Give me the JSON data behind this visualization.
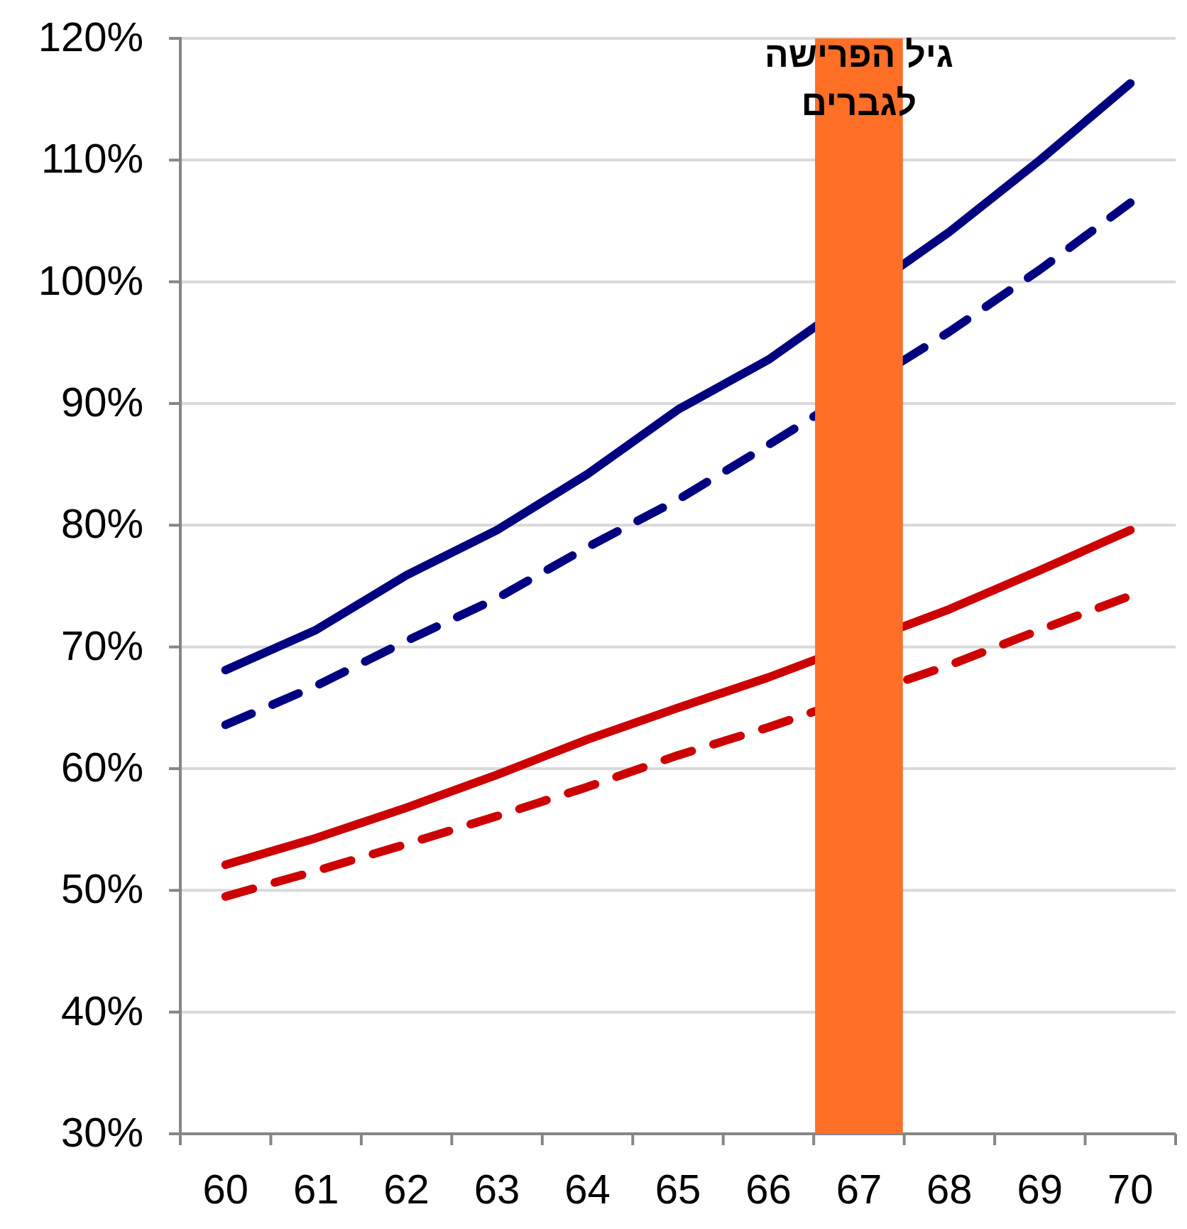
{
  "chart_data": {
    "type": "line",
    "categories": [
      "60",
      "61",
      "62",
      "63",
      "64",
      "65",
      "66",
      "67",
      "68",
      "69",
      "70"
    ],
    "series": [
      {
        "color": "#000080",
        "line_style": "solid",
        "values": [
          68.1,
          71.4,
          75.9,
          79.6,
          84.2,
          89.5,
          93.6,
          null,
          104.1,
          110.0,
          116.3
        ]
      },
      {
        "color": "#000080",
        "line_style": "dashed",
        "values": [
          63.6,
          66.8,
          70.5,
          74.0,
          78.2,
          82.1,
          86.6,
          null,
          95.9,
          101.0,
          106.5
        ]
      },
      {
        "color": "#cc0000",
        "line_style": "solid",
        "values": [
          52.1,
          54.3,
          56.8,
          59.5,
          62.4,
          65.0,
          67.5,
          null,
          73.1,
          76.3,
          79.6
        ]
      },
      {
        "color": "#cc0000",
        "line_style": "dashed",
        "values": [
          49.5,
          51.6,
          53.8,
          56.1,
          58.5,
          61.1,
          63.4,
          null,
          68.5,
          71.4,
          74.2
        ]
      },
      {
        "type": "bar",
        "color": "#ff6f26",
        "values": [
          null,
          null,
          null,
          null,
          null,
          null,
          null,
          120,
          null,
          null,
          null
        ]
      }
    ],
    "ylim": [
      30,
      120
    ],
    "yticks": [
      {
        "value": 30,
        "label": "30%"
      },
      {
        "value": 40,
        "label": "40%"
      },
      {
        "value": 50,
        "label": "50%"
      },
      {
        "value": 60,
        "label": "60%"
      },
      {
        "value": 70,
        "label": "70%"
      },
      {
        "value": 80,
        "label": "80%"
      },
      {
        "value": 90,
        "label": "90%"
      },
      {
        "value": 100,
        "label": "100%"
      },
      {
        "value": 110,
        "label": "110%"
      },
      {
        "value": 120,
        "label": "120%"
      }
    ],
    "grid": "y",
    "annotations": [
      "גיל הפרישה\nלגברים"
    ]
  }
}
